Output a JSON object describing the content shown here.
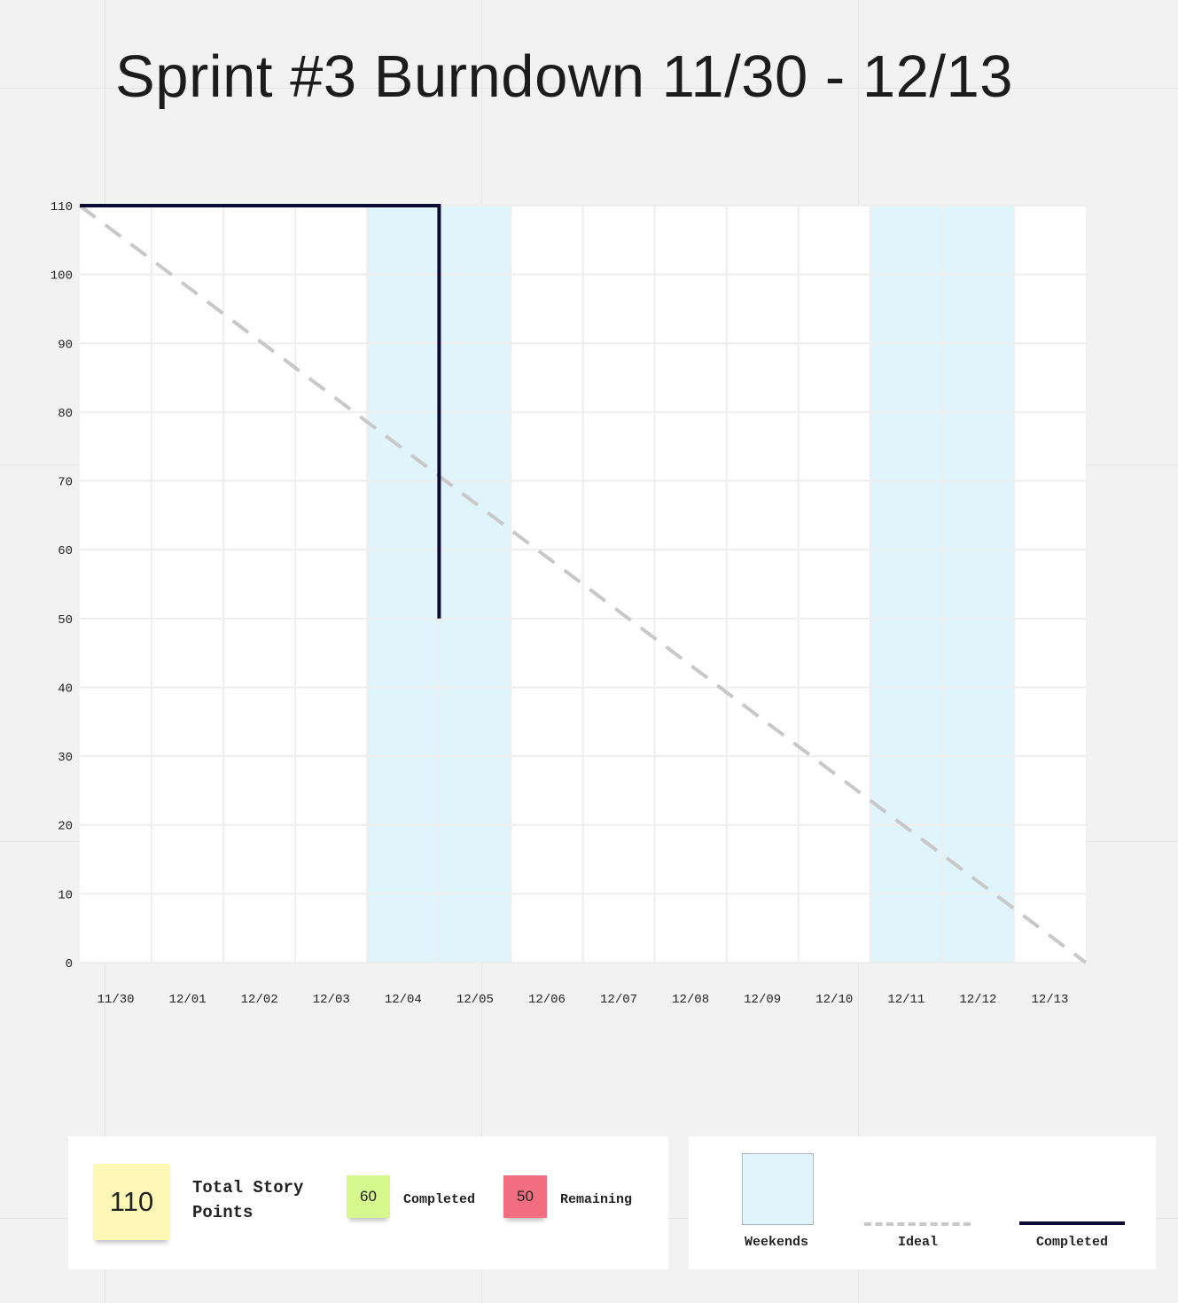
{
  "title": "Sprint #3 Burndown 11/30 - 12/13",
  "colors": {
    "weekend": "#e0f4fc",
    "ideal": "#c8c8c8",
    "completed": "#0d0b33",
    "total_note": "#fdf8b6",
    "completed_note": "#d6f68e",
    "remaining_note": "#f06e80"
  },
  "chart_data": {
    "type": "line",
    "x": [
      "11/30",
      "12/01",
      "12/02",
      "12/03",
      "12/04",
      "12/05",
      "12/06",
      "12/07",
      "12/08",
      "12/09",
      "12/10",
      "12/11",
      "12/12",
      "12/13"
    ],
    "y_ticks": [
      0,
      10,
      20,
      30,
      40,
      50,
      60,
      70,
      80,
      90,
      100,
      110
    ],
    "ylim": [
      0,
      110
    ],
    "grid": true,
    "weekend_ranges": [
      [
        "12/04",
        "12/05"
      ],
      [
        "12/11",
        "12/12"
      ]
    ],
    "series": [
      {
        "name": "Ideal",
        "style": "dashed",
        "points": [
          [
            "11/30",
            110
          ],
          [
            "12/13",
            0
          ]
        ]
      },
      {
        "name": "Completed",
        "style": "solid",
        "points": [
          [
            "11/30",
            110
          ],
          [
            "12/05",
            110
          ],
          [
            "12/05",
            50
          ]
        ]
      }
    ]
  },
  "summary": {
    "total_value": "110",
    "total_label": "Total Story Points",
    "completed_value": "60",
    "completed_label": "Completed",
    "remaining_value": "50",
    "remaining_label": "Remaining"
  },
  "legend": {
    "weekends": "Weekends",
    "ideal": "Ideal",
    "completed": "Completed"
  }
}
